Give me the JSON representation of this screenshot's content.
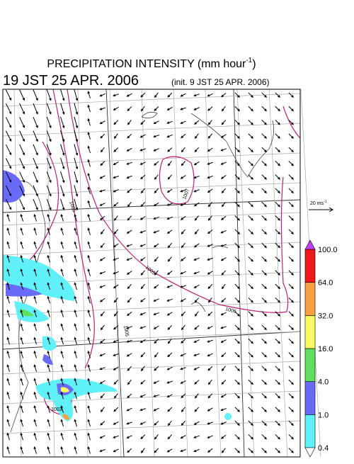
{
  "header": {
    "title": "PRECIPITATION INTENSITY (mm hour",
    "title_exponent": "-1",
    "title_close": ")",
    "valid_time": "19 JST 25 APR. 2006",
    "init_time": "(init. 9 JST 25 APR. 2006)"
  },
  "wind_scale": {
    "label": "20 ms",
    "exponent": "-1"
  },
  "contour_labels": [
    "1005",
    "1007",
    "1005",
    "1006",
    "1005",
    "1003"
  ],
  "colorbar": {
    "labels": [
      "0.4",
      "1.0",
      "4.0",
      "16.0",
      "32.0",
      "64.0",
      "100.0"
    ],
    "colors": [
      "#5ff0f8",
      "#6a6af8",
      "#5ee05e",
      "#f8f860",
      "#f8a040",
      "#f01818"
    ],
    "over_color": "#c040f0",
    "under_color": "#ffffff"
  }
}
